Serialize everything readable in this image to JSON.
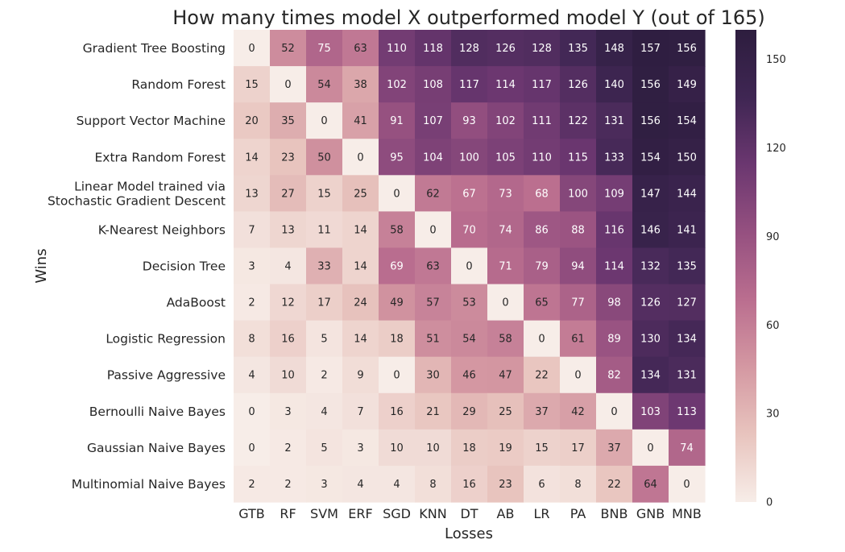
{
  "chart_data": {
    "type": "heatmap",
    "title": "How many times model X outperformed model Y (out of 165)",
    "xlabel": "Losses",
    "ylabel": "Wins",
    "x_categories": [
      "GTB",
      "RF",
      "SVM",
      "ERF",
      "SGD",
      "KNN",
      "DT",
      "AB",
      "LR",
      "PA",
      "BNB",
      "GNB",
      "MNB"
    ],
    "y_categories": [
      [
        "Gradient Tree Boosting"
      ],
      [
        "Random Forest"
      ],
      [
        "Support Vector Machine"
      ],
      [
        "Extra Random Forest"
      ],
      [
        "Linear Model trained via",
        "Stochastic Gradient Descent"
      ],
      [
        "K-Nearest Neighbors"
      ],
      [
        "Decision Tree"
      ],
      [
        "AdaBoost"
      ],
      [
        "Logistic Regression"
      ],
      [
        "Passive Aggressive"
      ],
      [
        "Bernoulli Naive Bayes"
      ],
      [
        "Gaussian Naive Bayes"
      ],
      [
        "Multinomial Naive Bayes"
      ]
    ],
    "values": [
      [
        0,
        52,
        75,
        63,
        110,
        118,
        128,
        126,
        128,
        135,
        148,
        157,
        156
      ],
      [
        15,
        0,
        54,
        38,
        102,
        108,
        117,
        114,
        117,
        126,
        140,
        156,
        149
      ],
      [
        20,
        35,
        0,
        41,
        91,
        107,
        93,
        102,
        111,
        122,
        131,
        156,
        154
      ],
      [
        14,
        23,
        50,
        0,
        95,
        104,
        100,
        105,
        110,
        115,
        133,
        154,
        150
      ],
      [
        13,
        27,
        15,
        25,
        0,
        62,
        67,
        73,
        68,
        100,
        109,
        147,
        144
      ],
      [
        7,
        13,
        11,
        14,
        58,
        0,
        70,
        74,
        86,
        88,
        116,
        146,
        141
      ],
      [
        3,
        4,
        33,
        14,
        69,
        63,
        0,
        71,
        79,
        94,
        114,
        132,
        135
      ],
      [
        2,
        12,
        17,
        24,
        49,
        57,
        53,
        0,
        65,
        77,
        98,
        126,
        127
      ],
      [
        8,
        16,
        5,
        14,
        18,
        51,
        54,
        58,
        0,
        61,
        89,
        130,
        134
      ],
      [
        4,
        10,
        2,
        9,
        0,
        30,
        46,
        47,
        22,
        0,
        82,
        134,
        131
      ],
      [
        0,
        3,
        4,
        7,
        16,
        21,
        29,
        25,
        37,
        42,
        0,
        103,
        113
      ],
      [
        0,
        2,
        5,
        3,
        10,
        10,
        18,
        19,
        15,
        17,
        37,
        0,
        74
      ],
      [
        2,
        2,
        3,
        4,
        4,
        8,
        16,
        23,
        6,
        8,
        22,
        64,
        0
      ]
    ],
    "colorbar": {
      "ticks": [
        0,
        30,
        60,
        90,
        120,
        150
      ],
      "vmin": 0,
      "vmax": 160
    },
    "colormap": [
      "#f7ede8",
      "#e8c4be",
      "#d498a2",
      "#ba6e8f",
      "#955080",
      "#6b3770",
      "#3f2653",
      "#2d1d3e"
    ],
    "grid": false,
    "legend": "colorbar-right"
  }
}
